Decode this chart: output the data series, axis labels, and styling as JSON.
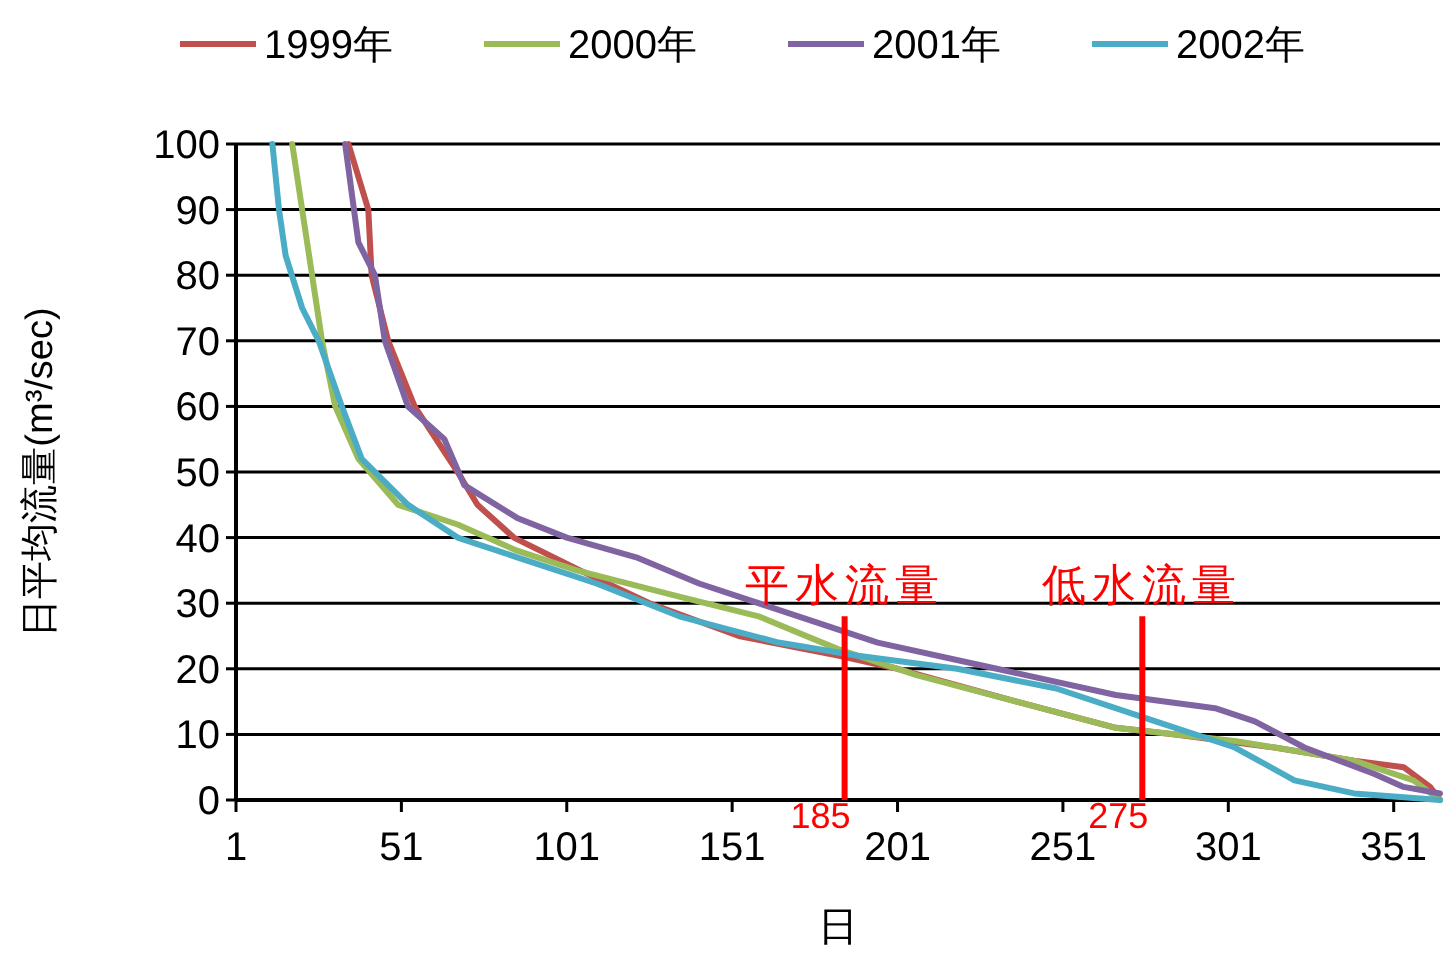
{
  "chart_data": {
    "type": "line",
    "xlabel": "日",
    "ylabel": "日平均流量(m³/sec)",
    "xlim": [
      1,
      365
    ],
    "xticks": [
      1,
      51,
      101,
      151,
      201,
      251,
      301,
      351
    ],
    "ylim": [
      0,
      100
    ],
    "yticks": [
      0,
      10,
      20,
      30,
      40,
      50,
      60,
      70,
      80,
      90,
      100
    ],
    "grid": "y",
    "legend": "top",
    "series": [
      {
        "name": "1999年",
        "color": "#c0504d",
        "x": [
          35,
          41,
          42,
          47,
          55,
          68,
          74,
          85,
          105,
          126,
          153,
          183,
          201,
          237,
          267,
          285,
          315,
          339,
          354,
          362,
          365
        ],
        "values": [
          100,
          90,
          80,
          70,
          60,
          50,
          45,
          40,
          35,
          30,
          25,
          22,
          20,
          15,
          11,
          10,
          8,
          6,
          5,
          2,
          0
        ]
      },
      {
        "name": "2000年",
        "color": "#9bbb59",
        "x": [
          18,
          21,
          24,
          27,
          31,
          38,
          50,
          68,
          86,
          104,
          135,
          159,
          183,
          207,
          237,
          267,
          303,
          339,
          357,
          365
        ],
        "values": [
          100,
          90,
          80,
          70,
          60,
          52,
          45,
          42,
          38,
          35,
          31,
          28,
          23,
          19,
          15,
          11,
          9,
          6,
          3,
          0
        ]
      },
      {
        "name": "2001年",
        "color": "#8064a2",
        "x": [
          34,
          38,
          43,
          46,
          53,
          64,
          70,
          86,
          101,
          122,
          141,
          171,
          195,
          231,
          267,
          297,
          309,
          324,
          345,
          354,
          365
        ],
        "values": [
          100,
          85,
          80,
          70,
          60,
          55,
          48,
          43,
          40,
          37,
          33,
          28,
          24,
          20,
          16,
          14,
          12,
          8,
          4,
          2,
          1
        ]
      },
      {
        "name": "2002年",
        "color": "#4bacc6",
        "x": [
          12,
          14,
          16,
          21,
          26,
          33,
          39,
          53,
          68,
          86,
          110,
          135,
          165,
          189,
          219,
          249,
          279,
          303,
          321,
          339,
          365
        ],
        "values": [
          100,
          90,
          83,
          75,
          70,
          60,
          52,
          45,
          40,
          37,
          33,
          28,
          24,
          22,
          20,
          17,
          12,
          8,
          3,
          1,
          0
        ]
      }
    ],
    "ref_lines": [
      {
        "axis": "x",
        "value": 185,
        "label": "185",
        "color": "#ff0000"
      },
      {
        "axis": "x",
        "value": 275,
        "label": "275",
        "color": "#ff0000"
      }
    ],
    "annotations": [
      "平水流量",
      "低水流量"
    ]
  }
}
